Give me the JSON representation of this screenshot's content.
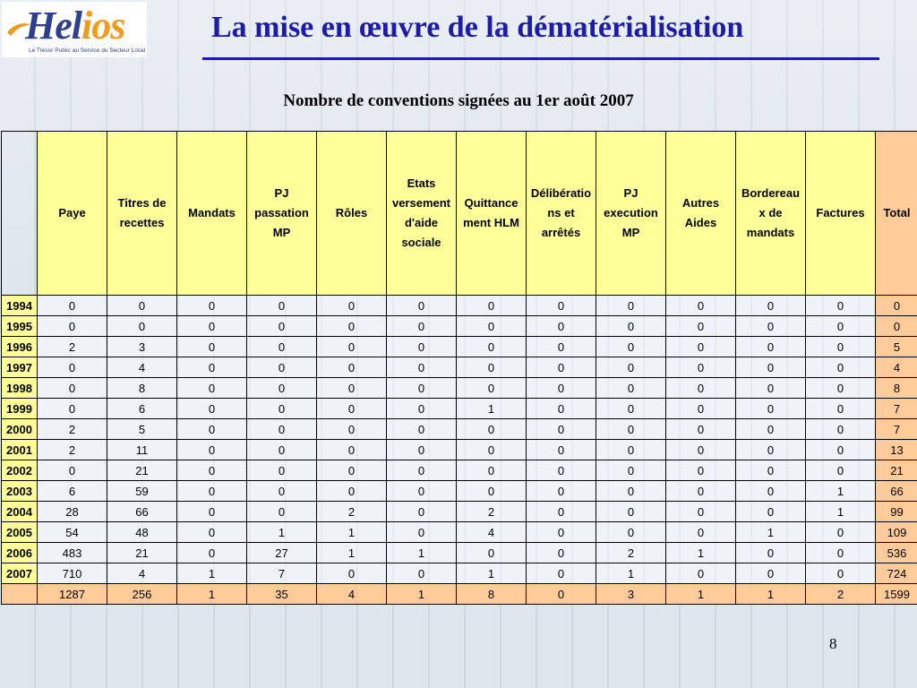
{
  "header": {
    "logo_text": "Helios",
    "logo_tagline": "Le Trésor Public au Service du Secteur Local",
    "title": "La mise en œuvre de la dématérialisation"
  },
  "subtitle": "Nombre de conventions signées au 1er août 2007",
  "table": {
    "columns": [
      "Paye",
      "Titres de recettes",
      "Mandats",
      "PJ passation MP",
      "Rôles",
      "Etats versement d'aide sociale",
      "Quittance ment HLM",
      "Délibératio ns et arrêtés",
      "PJ execution MP",
      "Autres Aides",
      "Bordereau x de mandats",
      "Factures",
      "Total"
    ],
    "rows": [
      {
        "year": "1994",
        "values": [
          "0",
          "0",
          "0",
          "0",
          "0",
          "0",
          "0",
          "0",
          "0",
          "0",
          "0",
          "0",
          "0"
        ]
      },
      {
        "year": "1995",
        "values": [
          "0",
          "0",
          "0",
          "0",
          "0",
          "0",
          "0",
          "0",
          "0",
          "0",
          "0",
          "0",
          "0"
        ]
      },
      {
        "year": "1996",
        "values": [
          "2",
          "3",
          "0",
          "0",
          "0",
          "0",
          "0",
          "0",
          "0",
          "0",
          "0",
          "0",
          "5"
        ]
      },
      {
        "year": "1997",
        "values": [
          "0",
          "4",
          "0",
          "0",
          "0",
          "0",
          "0",
          "0",
          "0",
          "0",
          "0",
          "0",
          "4"
        ]
      },
      {
        "year": "1998",
        "values": [
          "0",
          "8",
          "0",
          "0",
          "0",
          "0",
          "0",
          "0",
          "0",
          "0",
          "0",
          "0",
          "8"
        ]
      },
      {
        "year": "1999",
        "values": [
          "0",
          "6",
          "0",
          "0",
          "0",
          "0",
          "1",
          "0",
          "0",
          "0",
          "0",
          "0",
          "7"
        ]
      },
      {
        "year": "2000",
        "values": [
          "2",
          "5",
          "0",
          "0",
          "0",
          "0",
          "0",
          "0",
          "0",
          "0",
          "0",
          "0",
          "7"
        ]
      },
      {
        "year": "2001",
        "values": [
          "2",
          "11",
          "0",
          "0",
          "0",
          "0",
          "0",
          "0",
          "0",
          "0",
          "0",
          "0",
          "13"
        ]
      },
      {
        "year": "2002",
        "values": [
          "0",
          "21",
          "0",
          "0",
          "0",
          "0",
          "0",
          "0",
          "0",
          "0",
          "0",
          "0",
          "21"
        ]
      },
      {
        "year": "2003",
        "values": [
          "6",
          "59",
          "0",
          "0",
          "0",
          "0",
          "0",
          "0",
          "0",
          "0",
          "0",
          "1",
          "66"
        ]
      },
      {
        "year": "2004",
        "values": [
          "28",
          "66",
          "0",
          "0",
          "2",
          "0",
          "2",
          "0",
          "0",
          "0",
          "0",
          "1",
          "99"
        ]
      },
      {
        "year": "2005",
        "values": [
          "54",
          "48",
          "0",
          "1",
          "1",
          "0",
          "4",
          "0",
          "0",
          "0",
          "1",
          "0",
          "109"
        ]
      },
      {
        "year": "2006",
        "values": [
          "483",
          "21",
          "0",
          "27",
          "1",
          "1",
          "0",
          "0",
          "2",
          "1",
          "0",
          "0",
          "536"
        ]
      },
      {
        "year": "2007",
        "values": [
          "710",
          "4",
          "1",
          "7",
          "0",
          "0",
          "1",
          "0",
          "1",
          "0",
          "0",
          "0",
          "724"
        ]
      }
    ],
    "totals": [
      "1287",
      "256",
      "1",
      "35",
      "4",
      "1",
      "8",
      "0",
      "3",
      "1",
      "1",
      "2",
      "1599"
    ]
  },
  "page_number": "8",
  "colors": {
    "title": "#1c1ca8",
    "header_fill": "#ffff99",
    "total_fill": "#ffcc99"
  }
}
